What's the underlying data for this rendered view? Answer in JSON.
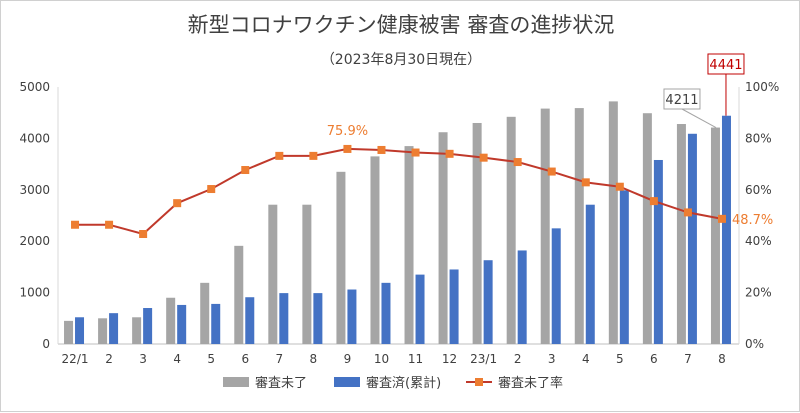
{
  "chart_data": {
    "type": "bar",
    "title": "新型コロナワクチン健康被害 審査の進捗状況",
    "subtitle": "（2023年8月30日現在）",
    "categories": [
      "22/1",
      "2",
      "3",
      "4",
      "5",
      "6",
      "7",
      "8",
      "9",
      "10",
      "11",
      "12",
      "23/1",
      "2",
      "3",
      "4",
      "5",
      "6",
      "7",
      "8"
    ],
    "series": [
      {
        "name": "審査未了",
        "kind": "bar",
        "axis": "left",
        "color": "#a5a5a5",
        "values": [
          450,
          500,
          520,
          900,
          1190,
          1910,
          2710,
          2710,
          3350,
          3650,
          3850,
          4120,
          4300,
          4420,
          4580,
          4590,
          4720,
          4490,
          4280,
          4211
        ]
      },
      {
        "name": "審査済(累計)",
        "kind": "bar",
        "axis": "left",
        "color": "#4472c4",
        "values": [
          520,
          600,
          700,
          760,
          780,
          910,
          990,
          990,
          1060,
          1190,
          1350,
          1450,
          1630,
          1820,
          2250,
          2710,
          2990,
          3580,
          4090,
          4441
        ]
      },
      {
        "name": "審査未了率",
        "kind": "line",
        "axis": "right",
        "color": "#c0392b",
        "marker_color": "#ed7d31",
        "values": [
          46.4,
          46.4,
          42.8,
          54.8,
          60.3,
          67.7,
          73.2,
          73.2,
          75.9,
          75.5,
          74.5,
          74.0,
          72.5,
          70.8,
          67.1,
          62.9,
          61.2,
          55.6,
          51.2,
          48.7
        ]
      }
    ],
    "y_left": {
      "min": 0,
      "max": 5000,
      "ticks": [
        "0",
        "1000",
        "2000",
        "3000",
        "4000",
        "5000"
      ]
    },
    "y_right": {
      "min": 0,
      "max": 100,
      "ticks": [
        "0%",
        "20%",
        "40%",
        "60%",
        "80%",
        "100%"
      ]
    },
    "annotations": [
      {
        "text": "75.9%",
        "series": 2,
        "index": 8,
        "color": "#ed7d31"
      },
      {
        "text": "48.7%",
        "series": 2,
        "index": 19,
        "color": "#ed7d31"
      },
      {
        "text": "4211",
        "series": 0,
        "index": 19,
        "color": "#404040",
        "border": "#a5a5a5"
      },
      {
        "text": "4441",
        "series": 1,
        "index": 19,
        "color": "#c00000",
        "border": "#c00000"
      }
    ],
    "grid": false,
    "legend_position": "bottom"
  }
}
